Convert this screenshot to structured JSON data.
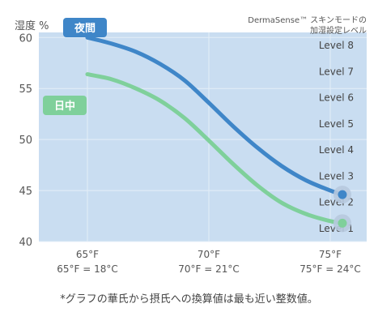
{
  "chart_data": {
    "type": "line",
    "title": "",
    "ylabel": "湿度 %",
    "yticks": [
      "60",
      "55",
      "50",
      "45",
      "40"
    ],
    "ylim": [
      40,
      60.5
    ],
    "xlim": [
      63,
      76.5
    ],
    "xticks": [
      {
        "value": 65,
        "label": "65°F",
        "conversion": "65°F = 18°C"
      },
      {
        "value": 70,
        "label": "70°F",
        "conversion": "70°F = 21°C"
      },
      {
        "value": 75,
        "label": "75°F",
        "conversion": "75°F = 24°C"
      }
    ],
    "level_caption": [
      "DermaSense™ スキンモードの",
      "加湿設定レベル"
    ],
    "levels": [
      "Level 8",
      "Level 7",
      "Level 6",
      "Level 5",
      "Level 4",
      "Level 3",
      "Level 2",
      "Level 1"
    ],
    "series": [
      {
        "name": "夜間",
        "color": "#3f86c8",
        "x": [
          65,
          66,
          67,
          68,
          69,
          70,
          71,
          72,
          73,
          74,
          75,
          75.5
        ],
        "y": [
          60.0,
          59.4,
          58.6,
          57.4,
          55.8,
          53.6,
          51.3,
          49.2,
          47.4,
          46.0,
          45.0,
          44.6
        ]
      },
      {
        "name": "日中",
        "color": "#7fd09b",
        "x": [
          65,
          66,
          67,
          68,
          69,
          70,
          71,
          72,
          73,
          74,
          75,
          75.5
        ],
        "y": [
          56.4,
          55.9,
          55.0,
          53.8,
          52.1,
          49.9,
          47.6,
          45.5,
          43.8,
          42.7,
          42.0,
          41.8
        ]
      }
    ]
  },
  "colors": {
    "plot_bg": "#c9ddf1",
    "grid": "#e4eef8",
    "night": "#3f86c8",
    "day": "#7fd09b"
  },
  "footnote": "*グラフの華氏から摂氏への換算値は最も近い整数値。"
}
